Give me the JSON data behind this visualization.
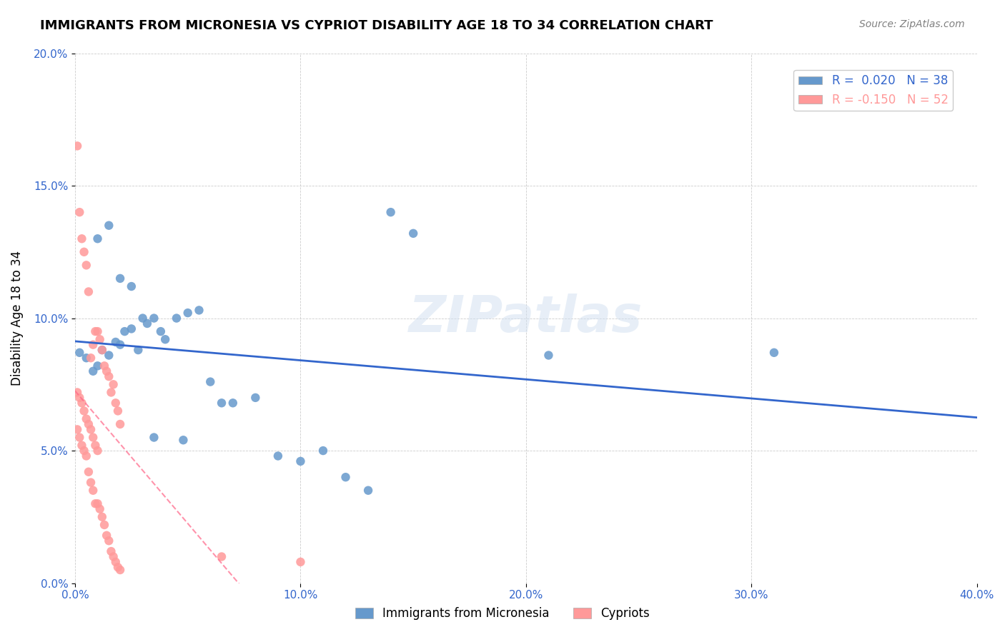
{
  "title": "IMMIGRANTS FROM MICRONESIA VS CYPRIOT DISABILITY AGE 18 TO 34 CORRELATION CHART",
  "source": "Source: ZipAtlas.com",
  "xlabel": "",
  "ylabel": "Disability Age 18 to 34",
  "xlim": [
    0.0,
    0.4
  ],
  "ylim": [
    0.0,
    0.2
  ],
  "xticks": [
    0.0,
    0.1,
    0.2,
    0.3,
    0.4
  ],
  "xtick_labels": [
    "0.0%",
    "10.0%",
    "20.0%",
    "30.0%",
    "40.0%"
  ],
  "yticks": [
    0.0,
    0.05,
    0.1,
    0.15,
    0.2
  ],
  "ytick_labels": [
    "0.0%",
    "5.0%",
    "10.0%",
    "15.0%",
    "20.0%"
  ],
  "grid_color": "#cccccc",
  "watermark": "ZIPatlas",
  "legend1_label": "R =  0.020   N = 38",
  "legend2_label": "R = -0.150   N = 52",
  "blue_color": "#6699cc",
  "pink_color": "#ff9999",
  "blue_line_color": "#3366cc",
  "pink_line_color": "#ff6688",
  "blue_scatter_x": [
    0.002,
    0.005,
    0.008,
    0.01,
    0.012,
    0.015,
    0.018,
    0.02,
    0.022,
    0.025,
    0.028,
    0.03,
    0.032,
    0.035,
    0.038,
    0.04,
    0.045,
    0.05,
    0.055,
    0.06,
    0.065,
    0.07,
    0.08,
    0.09,
    0.1,
    0.11,
    0.12,
    0.13,
    0.14,
    0.15,
    0.01,
    0.015,
    0.02,
    0.025,
    0.21,
    0.31,
    0.035,
    0.048
  ],
  "blue_scatter_y": [
    0.087,
    0.085,
    0.08,
    0.082,
    0.088,
    0.086,
    0.091,
    0.09,
    0.095,
    0.096,
    0.088,
    0.1,
    0.098,
    0.1,
    0.095,
    0.092,
    0.1,
    0.102,
    0.103,
    0.076,
    0.068,
    0.068,
    0.07,
    0.048,
    0.046,
    0.05,
    0.04,
    0.035,
    0.14,
    0.132,
    0.13,
    0.135,
    0.115,
    0.112,
    0.086,
    0.087,
    0.055,
    0.054
  ],
  "pink_scatter_x": [
    0.001,
    0.002,
    0.003,
    0.004,
    0.005,
    0.006,
    0.007,
    0.008,
    0.009,
    0.01,
    0.011,
    0.012,
    0.013,
    0.014,
    0.015,
    0.016,
    0.017,
    0.018,
    0.019,
    0.02,
    0.001,
    0.002,
    0.003,
    0.004,
    0.005,
    0.006,
    0.007,
    0.008,
    0.009,
    0.01,
    0.011,
    0.012,
    0.013,
    0.014,
    0.015,
    0.016,
    0.017,
    0.018,
    0.019,
    0.02,
    0.001,
    0.002,
    0.003,
    0.004,
    0.005,
    0.006,
    0.007,
    0.008,
    0.009,
    0.01,
    0.065,
    0.1
  ],
  "pink_scatter_y": [
    0.165,
    0.14,
    0.13,
    0.125,
    0.12,
    0.11,
    0.085,
    0.09,
    0.095,
    0.095,
    0.092,
    0.088,
    0.082,
    0.08,
    0.078,
    0.072,
    0.075,
    0.068,
    0.065,
    0.06,
    0.058,
    0.055,
    0.052,
    0.05,
    0.048,
    0.042,
    0.038,
    0.035,
    0.03,
    0.03,
    0.028,
    0.025,
    0.022,
    0.018,
    0.016,
    0.012,
    0.01,
    0.008,
    0.006,
    0.005,
    0.072,
    0.07,
    0.068,
    0.065,
    0.062,
    0.06,
    0.058,
    0.055,
    0.052,
    0.05,
    0.01,
    0.008
  ]
}
